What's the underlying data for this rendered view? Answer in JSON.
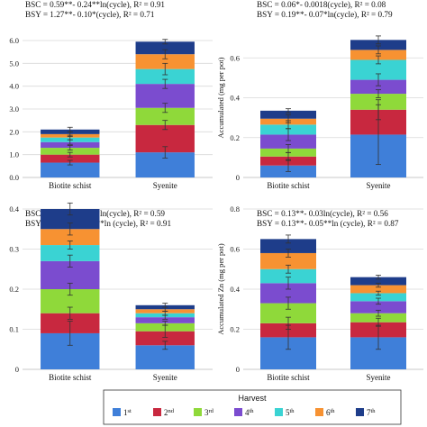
{
  "chart_data": [
    {
      "type": "bar",
      "stacked": true,
      "categories": [
        "Biotite schist",
        "Syenite"
      ],
      "series": [
        {
          "name": "1st",
          "values": [
            0.65,
            1.1
          ]
        },
        {
          "name": "2nd",
          "values": [
            0.35,
            1.2
          ]
        },
        {
          "name": "3rd",
          "values": [
            0.3,
            0.75
          ]
        },
        {
          "name": "4th",
          "values": [
            0.25,
            1.05
          ]
        },
        {
          "name": "5th",
          "values": [
            0.2,
            0.65
          ]
        },
        {
          "name": "6th",
          "values": [
            0.15,
            0.65
          ]
        },
        {
          "name": "7th",
          "values": [
            0.2,
            0.55
          ]
        }
      ],
      "error_bars": [
        {
          "series": "1st",
          "values": [
            0.1,
            0.25
          ]
        },
        {
          "series": "2nd",
          "values": [
            0.1,
            0.2
          ]
        },
        {
          "series": "3rd",
          "values": [
            0.1,
            0.2
          ]
        },
        {
          "series": "4th",
          "values": [
            0.1,
            0.2
          ]
        },
        {
          "series": "5th",
          "values": [
            0.1,
            0.25
          ]
        },
        {
          "series": "6th",
          "values": [
            0.1,
            0.2
          ]
        },
        {
          "series": "7th",
          "values": [
            0.1,
            0.1
          ]
        }
      ],
      "ylim": [
        0,
        6
      ],
      "yticks": [
        "0.0",
        "1.0",
        "2.0",
        "3.0",
        "4.0",
        "5.0",
        "6.0"
      ],
      "ylabel": "",
      "equations": [
        "BSC = 0.59**- 0.24**ln(cycle), R² = 0.91",
        "BSY = 1.27**- 0.10*(cycle), R² = 0.71"
      ]
    },
    {
      "type": "bar",
      "stacked": true,
      "categories": [
        "Biotite schist",
        "Syenite"
      ],
      "series": [
        {
          "name": "1st",
          "values": [
            0.06,
            0.215
          ]
        },
        {
          "name": "2nd",
          "values": [
            0.045,
            0.125
          ]
        },
        {
          "name": "3rd",
          "values": [
            0.04,
            0.08
          ]
        },
        {
          "name": "4th",
          "values": [
            0.07,
            0.07
          ]
        },
        {
          "name": "5th",
          "values": [
            0.05,
            0.1
          ]
        },
        {
          "name": "6th",
          "values": [
            0.03,
            0.05
          ]
        },
        {
          "name": "7th",
          "values": [
            0.04,
            0.05
          ]
        }
      ],
      "error_bars": [
        {
          "series": "1st",
          "values": [
            0.03,
            0.15
          ]
        },
        {
          "series": "2nd",
          "values": [
            0.02,
            0.05
          ]
        },
        {
          "series": "3rd",
          "values": [
            0.02,
            0.02
          ]
        },
        {
          "series": "4th",
          "values": [
            0.03,
            0.03
          ]
        },
        {
          "series": "5th",
          "values": [
            0.02,
            0.02
          ]
        },
        {
          "series": "6th",
          "values": [
            0.02,
            0.02
          ]
        },
        {
          "series": "7th",
          "values": [
            0.01,
            0.02
          ]
        }
      ],
      "ylim": [
        0,
        0.8
      ],
      "yticks": [
        "0",
        "0.2",
        "0.4",
        "0.6"
      ],
      "ylabel": "Accumulated (mg per pot)",
      "equations": [
        "BSC = 0.06*- 0.0018(cycle), R² = 0.08",
        "BSY = 0.19**- 0.07*ln(cycle), R² = 0.79"
      ]
    },
    {
      "type": "bar",
      "stacked": true,
      "categories": [
        "Biotite schist",
        "Syenite"
      ],
      "series": [
        {
          "name": "1st",
          "values": [
            0.09,
            0.06
          ]
        },
        {
          "name": "2nd",
          "values": [
            0.05,
            0.035
          ]
        },
        {
          "name": "3rd",
          "values": [
            0.06,
            0.02
          ]
        },
        {
          "name": "4th",
          "values": [
            0.07,
            0.015
          ]
        },
        {
          "name": "5th",
          "values": [
            0.04,
            0.01
          ]
        },
        {
          "name": "6th",
          "values": [
            0.04,
            0.01
          ]
        },
        {
          "name": "7th",
          "values": [
            0.05,
            0.01
          ]
        }
      ],
      "error_bars": [
        {
          "series": "1st",
          "values": [
            0.03,
            0.01
          ]
        },
        {
          "series": "2nd",
          "values": [
            0.015,
            0.015
          ]
        },
        {
          "series": "3rd",
          "values": [
            0.015,
            0.005
          ]
        },
        {
          "series": "4th",
          "values": [
            0.015,
            0.005
          ]
        },
        {
          "series": "5th",
          "values": [
            0.01,
            0.005
          ]
        },
        {
          "series": "6th",
          "values": [
            0.015,
            0.005
          ]
        },
        {
          "series": "7th",
          "values": [
            0.015,
            0.005
          ]
        }
      ],
      "ylim": [
        0,
        0.4
      ],
      "yticks": [
        "0",
        "0.1",
        "0.2",
        "0.3",
        "0.4"
      ],
      "ylabel": "",
      "equations": [
        "BSC = 0.083**- 0.02*ln(cycle), R² = 0.59",
        "BSY = 0.055**- 0.02**ln (cycle), R² = 0.91"
      ]
    },
    {
      "type": "bar",
      "stacked": true,
      "categories": [
        "Biotite schist",
        "Syenite"
      ],
      "series": [
        {
          "name": "1st",
          "values": [
            0.16,
            0.16
          ]
        },
        {
          "name": "2nd",
          "values": [
            0.07,
            0.075
          ]
        },
        {
          "name": "3rd",
          "values": [
            0.1,
            0.045
          ]
        },
        {
          "name": "4th",
          "values": [
            0.1,
            0.06
          ]
        },
        {
          "name": "5th",
          "values": [
            0.07,
            0.04
          ]
        },
        {
          "name": "6th",
          "values": [
            0.08,
            0.04
          ]
        },
        {
          "name": "7th",
          "values": [
            0.07,
            0.04
          ]
        }
      ],
      "error_bars": [
        {
          "series": "1st",
          "values": [
            0.06,
            0.06
          ]
        },
        {
          "series": "2nd",
          "values": [
            0.03,
            0.02
          ]
        },
        {
          "series": "3rd",
          "values": [
            0.03,
            0.015
          ]
        },
        {
          "series": "4th",
          "values": [
            0.03,
            0.015
          ]
        },
        {
          "series": "5th",
          "values": [
            0.02,
            0.01
          ]
        },
        {
          "series": "6th",
          "values": [
            0.02,
            0.01
          ]
        },
        {
          "series": "7th",
          "values": [
            0.02,
            0.01
          ]
        }
      ],
      "ylim": [
        0,
        0.8
      ],
      "yticks": [
        "0",
        "0.2",
        "0.4",
        "0.6",
        "0.8"
      ],
      "ylabel": "Accumulated Zn (mg per pot)",
      "equations": [
        "BSC = 0.13**- 0.03ln(cycle), R² = 0.56",
        "BSY = 0.13**- 0.05**ln (cycle), R² = 0.87"
      ]
    }
  ],
  "colors": {
    "1st": "#3f7fd9",
    "2nd": "#c8283f",
    "3rd": "#8fd93a",
    "4th": "#7b4ccf",
    "5th": "#3ad3d3",
    "6th": "#f79232",
    "7th": "#1e3d8a"
  },
  "legend": {
    "title": "Harvest",
    "items": [
      {
        "base": "1",
        "sup": "st"
      },
      {
        "base": "2",
        "sup": "nd"
      },
      {
        "base": "3",
        "sup": "rd"
      },
      {
        "base": "4",
        "sup": "th"
      },
      {
        "base": "5",
        "sup": "th"
      },
      {
        "base": "6",
        "sup": "th"
      },
      {
        "base": "7",
        "sup": "th"
      }
    ]
  }
}
